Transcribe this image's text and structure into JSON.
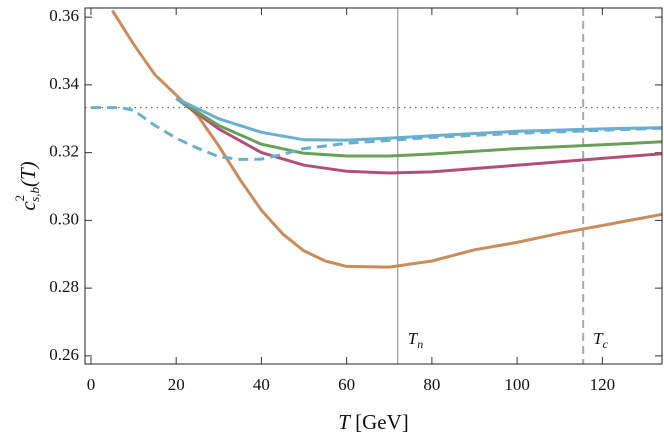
{
  "chart_data": {
    "type": "line",
    "x_label": {
      "var": "T",
      "rest": " [GeV]"
    },
    "y_label": {
      "base": "c",
      "sup": "2",
      "sub": "s,b",
      "rest": "(T)"
    },
    "xlim": [
      -1.4,
      134
    ],
    "ylim": [
      0.2576,
      0.3627
    ],
    "xticks": [
      0,
      20,
      40,
      60,
      80,
      100,
      120
    ],
    "yticks": [
      0.26,
      0.28,
      {
        "value": 0.3,
        "label": "0.30"
      },
      0.32,
      0.34,
      0.36
    ],
    "hline": {
      "y": 0.3333,
      "style": "dotted",
      "color": "#555555"
    },
    "vlines": [
      {
        "x": 72,
        "style": "solid",
        "color": "#888888",
        "label": {
          "base": "T",
          "sub": "n"
        }
      },
      {
        "x": 115.5,
        "style": "dashed",
        "color": "#aaaaaa",
        "label": {
          "base": "T",
          "sub": "c"
        }
      }
    ],
    "series": [
      {
        "color": "#c98c5a",
        "dash": false,
        "x": [
          5,
          10,
          15,
          20,
          25,
          30,
          35,
          40,
          45,
          50,
          55,
          60,
          70,
          80,
          90,
          100,
          110,
          120,
          134
        ],
        "values": [
          0.362,
          0.352,
          0.343,
          0.337,
          0.331,
          0.322,
          0.312,
          0.303,
          0.296,
          0.291,
          0.288,
          0.2864,
          0.2862,
          0.288,
          0.2913,
          0.2935,
          0.2962,
          0.2985,
          0.3018
        ]
      },
      {
        "color": "#b0507a",
        "dash": false,
        "x": [
          20,
          30,
          40,
          50,
          60,
          70,
          80,
          100,
          120,
          134
        ],
        "values": [
          0.336,
          0.327,
          0.32,
          0.3163,
          0.3145,
          0.314,
          0.3143,
          0.3163,
          0.3183,
          0.3197
        ]
      },
      {
        "color": "#6a9f58",
        "dash": false,
        "x": [
          20,
          30,
          40,
          50,
          60,
          70,
          80,
          100,
          120,
          134
        ],
        "values": [
          0.336,
          0.328,
          0.3225,
          0.3198,
          0.319,
          0.319,
          0.3196,
          0.3212,
          0.3223,
          0.3232
        ]
      },
      {
        "color": "#6aaed0",
        "dash": false,
        "x": [
          20,
          30,
          40,
          50,
          60,
          70,
          80,
          100,
          120,
          134
        ],
        "values": [
          0.336,
          0.33,
          0.326,
          0.3238,
          0.3237,
          0.3243,
          0.325,
          0.3263,
          0.327,
          0.3274
        ]
      },
      {
        "color": "#6aaed0",
        "dash": true,
        "x": [
          0,
          7,
          10,
          15,
          20,
          25,
          30,
          35,
          40,
          45,
          50,
          60,
          70,
          80,
          100,
          120,
          134
        ],
        "values": [
          0.3333,
          0.3333,
          0.3325,
          0.328,
          0.3243,
          0.3213,
          0.3188,
          0.318,
          0.3181,
          0.3195,
          0.3212,
          0.3228,
          0.3236,
          0.3245,
          0.3257,
          0.3266,
          0.3272
        ]
      }
    ]
  }
}
